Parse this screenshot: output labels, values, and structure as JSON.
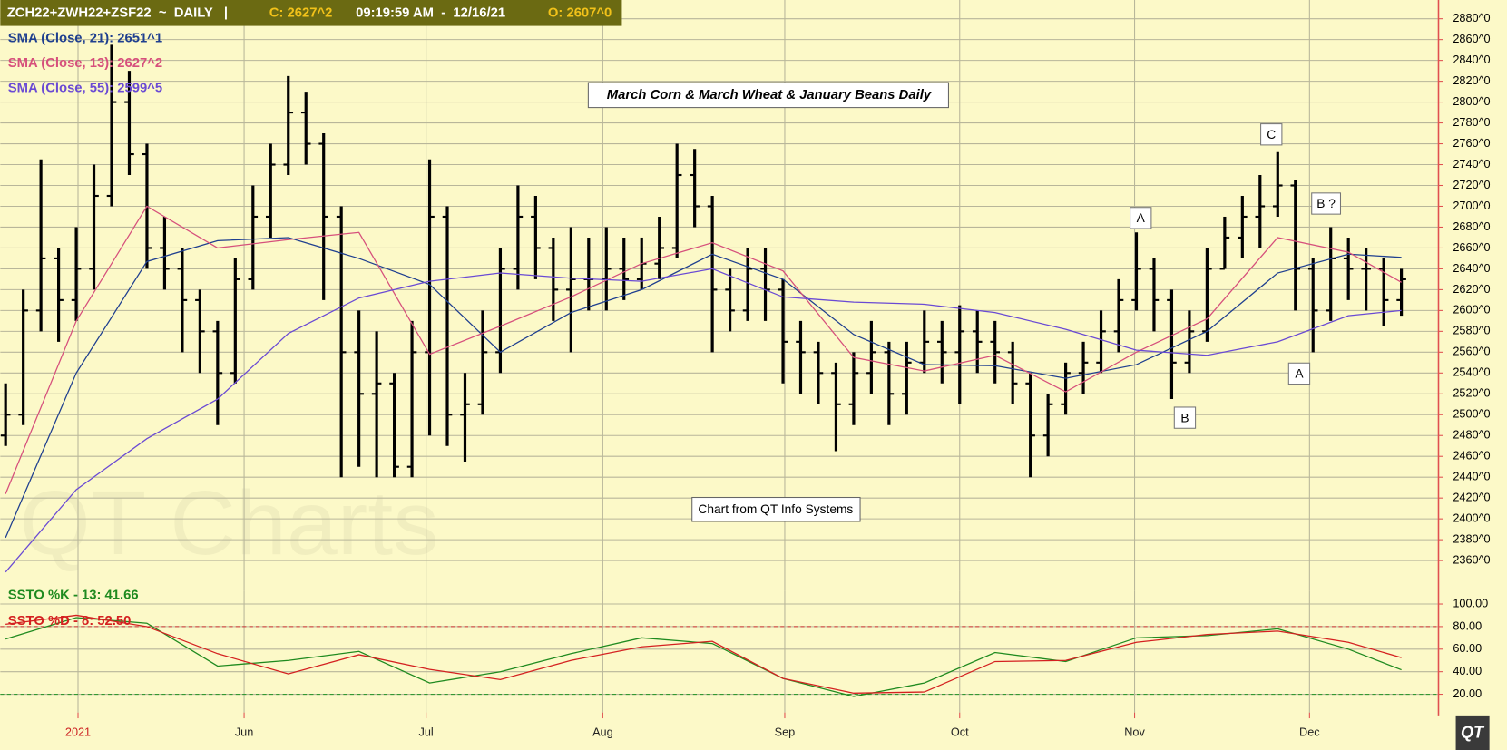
{
  "header": {
    "symbol": "ZCH22+ZWH22+ZSF22  ~  DAILY   |",
    "close": "C: 2627^2",
    "time": "09:19:59 AM  -  12/16/21",
    "open": "O: 2607^0"
  },
  "logo": "QT",
  "chart_data": [
    {
      "type": "ohlc",
      "title": "March Corn & March Wheat & January Beans Daily",
      "source": "Chart from QT Info Systems",
      "watermark": "QT Charts",
      "bar_color": "#000000",
      "open": [
        2480,
        2500,
        2600,
        2650,
        2610,
        2640,
        2710,
        2800,
        2750,
        2660,
        2640,
        2610,
        2580,
        2540,
        2630,
        2690,
        2740,
        2790,
        2760,
        2690,
        2560,
        2520,
        2530,
        2450,
        2560,
        2690,
        2500,
        2510,
        2560,
        2640,
        2690,
        2660,
        2620,
        2630,
        2630,
        2640,
        2630,
        2645,
        2660,
        2730,
        2700,
        2620,
        2600,
        2640,
        2620,
        2570,
        2560,
        2540,
        2510,
        2540,
        2560,
        2520,
        2550,
        2570,
        2560,
        2580,
        2570,
        2560,
        2530,
        2480,
        2510,
        2540,
        2550,
        2580,
        2610,
        2640,
        2610,
        2550,
        2580,
        2640,
        2670,
        2690,
        2700,
        2720,
        2640,
        2600,
        2650,
        2640,
        2640,
        2610
      ],
      "high": [
        2530,
        2620,
        2745,
        2660,
        2680,
        2740,
        2855,
        2830,
        2760,
        2690,
        2660,
        2620,
        2590,
        2650,
        2720,
        2760,
        2825,
        2810,
        2770,
        2700,
        2600,
        2580,
        2540,
        2590,
        2745,
        2700,
        2540,
        2600,
        2660,
        2720,
        2710,
        2670,
        2680,
        2670,
        2680,
        2670,
        2670,
        2690,
        2760,
        2755,
        2710,
        2640,
        2660,
        2660,
        2630,
        2590,
        2570,
        2550,
        2560,
        2590,
        2570,
        2570,
        2600,
        2590,
        2605,
        2600,
        2590,
        2570,
        2540,
        2520,
        2550,
        2570,
        2600,
        2630,
        2675,
        2650,
        2620,
        2600,
        2660,
        2690,
        2710,
        2730,
        2752,
        2725,
        2650,
        2680,
        2670,
        2660,
        2650,
        2640
      ],
      "low": [
        2470,
        2490,
        2580,
        2570,
        2590,
        2620,
        2700,
        2730,
        2640,
        2620,
        2560,
        2540,
        2490,
        2530,
        2620,
        2670,
        2730,
        2740,
        2610,
        2440,
        2450,
        2440,
        2440,
        2440,
        2480,
        2470,
        2455,
        2500,
        2540,
        2620,
        2630,
        2590,
        2560,
        2600,
        2600,
        2610,
        2620,
        2630,
        2650,
        2680,
        2560,
        2580,
        2590,
        2590,
        2530,
        2520,
        2510,
        2465,
        2490,
        2520,
        2490,
        2500,
        2540,
        2530,
        2510,
        2540,
        2530,
        2510,
        2440,
        2460,
        2500,
        2520,
        2540,
        2560,
        2600,
        2580,
        2515,
        2540,
        2570,
        2640,
        2650,
        2660,
        2690,
        2600,
        2560,
        2590,
        2610,
        2600,
        2585,
        2595
      ],
      "close": [
        2500,
        2600,
        2650,
        2610,
        2640,
        2710,
        2800,
        2750,
        2660,
        2640,
        2610,
        2580,
        2540,
        2630,
        2690,
        2740,
        2790,
        2760,
        2690,
        2560,
        2520,
        2530,
        2450,
        2560,
        2690,
        2500,
        2510,
        2560,
        2640,
        2690,
        2660,
        2620,
        2630,
        2630,
        2640,
        2630,
        2645,
        2660,
        2730,
        2700,
        2620,
        2600,
        2640,
        2620,
        2570,
        2560,
        2540,
        2510,
        2540,
        2560,
        2520,
        2550,
        2570,
        2560,
        2580,
        2570,
        2560,
        2530,
        2480,
        2510,
        2540,
        2550,
        2580,
        2610,
        2640,
        2610,
        2550,
        2580,
        2640,
        2670,
        2690,
        2700,
        2720,
        2640,
        2600,
        2650,
        2640,
        2640,
        2610,
        2630
      ],
      "series": [
        {
          "name": "SMA (Close, 21): 2651^1",
          "color": "#1f3f8f",
          "x": [
            0,
            4,
            8,
            12,
            16,
            20,
            24,
            28,
            32,
            36,
            40,
            44,
            48,
            52,
            56,
            60,
            64,
            68,
            72,
            76,
            79
          ],
          "values": [
            2382,
            2540,
            2647,
            2667,
            2670,
            2650,
            2625,
            2560,
            2598,
            2620,
            2654,
            2630,
            2577,
            2548,
            2547,
            2535,
            2548,
            2580,
            2636,
            2654,
            2651
          ]
        },
        {
          "name": "SMA (Close, 13): 2627^2",
          "color": "#d6507c",
          "x": [
            0,
            4,
            8,
            12,
            16,
            20,
            24,
            28,
            32,
            36,
            40,
            44,
            48,
            52,
            56,
            60,
            64,
            68,
            72,
            76,
            79
          ],
          "values": [
            2424,
            2590,
            2700,
            2660,
            2668,
            2675,
            2558,
            2585,
            2613,
            2645,
            2665,
            2638,
            2555,
            2542,
            2557,
            2522,
            2560,
            2592,
            2670,
            2656,
            2627
          ]
        },
        {
          "name": "SMA (Close, 55): 2599^5",
          "color": "#6a4ad4",
          "x": [
            0,
            4,
            8,
            12,
            16,
            20,
            24,
            28,
            32,
            36,
            40,
            44,
            48,
            52,
            56,
            60,
            64,
            68,
            72,
            76,
            79
          ],
          "values": [
            2349,
            2428,
            2477,
            2515,
            2578,
            2612,
            2628,
            2636,
            2631,
            2628,
            2640,
            2613,
            2608,
            2606,
            2598,
            2582,
            2562,
            2557,
            2570,
            2595,
            2600
          ]
        }
      ],
      "annotations": [
        "A",
        "C",
        "B ?",
        "B",
        "A"
      ],
      "xlim": [
        -0.3,
        81.1
      ],
      "xticks": [
        {
          "value": 4.1,
          "label": "2021"
        },
        {
          "value": 13.5,
          "label": "Jun"
        },
        {
          "value": 23.8,
          "label": "Jul"
        },
        {
          "value": 33.8,
          "label": "Aug"
        },
        {
          "value": 44.1,
          "label": "Sep"
        },
        {
          "value": 54,
          "label": "Oct"
        },
        {
          "value": 63.9,
          "label": "Nov"
        },
        {
          "value": 73.8,
          "label": "Dec"
        }
      ],
      "ylim": [
        2345,
        2898
      ],
      "yticks": [
        {
          "value": 2360,
          "label": "2360^0"
        },
        {
          "value": 2380,
          "label": "2380^0"
        },
        {
          "value": 2400,
          "label": "2400^0"
        },
        {
          "value": 2420,
          "label": "2420^0"
        },
        {
          "value": 2440,
          "label": "2440^0"
        },
        {
          "value": 2460,
          "label": "2460^0"
        },
        {
          "value": 2480,
          "label": "2480^0"
        },
        {
          "value": 2500,
          "label": "2500^0"
        },
        {
          "value": 2520,
          "label": "2520^0"
        },
        {
          "value": 2540,
          "label": "2540^0"
        },
        {
          "value": 2560,
          "label": "2560^0"
        },
        {
          "value": 2580,
          "label": "2580^0"
        },
        {
          "value": 2600,
          "label": "2600^0"
        },
        {
          "value": 2620,
          "label": "2620^0"
        },
        {
          "value": 2640,
          "label": "2640^0"
        },
        {
          "value": 2660,
          "label": "2660^0"
        },
        {
          "value": 2680,
          "label": "2680^0"
        },
        {
          "value": 2700,
          "label": "2700^0"
        },
        {
          "value": 2720,
          "label": "2720^0"
        },
        {
          "value": 2740,
          "label": "2740^0"
        },
        {
          "value": 2760,
          "label": "2760^0"
        },
        {
          "value": 2780,
          "label": "2780^0"
        },
        {
          "value": 2800,
          "label": "2800^0"
        },
        {
          "value": 2820,
          "label": "2820^0"
        },
        {
          "value": 2840,
          "label": "2840^0"
        },
        {
          "value": 2860,
          "label": "2860^0"
        },
        {
          "value": 2880,
          "label": "2880^0"
        }
      ],
      "grid": true
    },
    {
      "type": "line",
      "series": [
        {
          "name": "SSTO %K - 13: 41.66",
          "color": "#1f8a1f",
          "x": [
            0,
            4,
            8,
            12,
            16,
            20,
            24,
            28,
            32,
            36,
            40,
            44,
            48,
            52,
            56,
            60,
            64,
            68,
            72,
            76,
            79
          ],
          "values": [
            69,
            88,
            83,
            45,
            50,
            58,
            30,
            40,
            56,
            70,
            65,
            34,
            18,
            30,
            57,
            49,
            70,
            72,
            78,
            60,
            41.66
          ]
        },
        {
          "name": "SSTO %D - 8: 52.50",
          "color": "#d42020",
          "x": [
            0,
            4,
            8,
            12,
            16,
            20,
            24,
            28,
            32,
            36,
            40,
            44,
            48,
            52,
            56,
            60,
            64,
            68,
            72,
            76,
            79
          ],
          "values": [
            82,
            90,
            80,
            56,
            38,
            55,
            42,
            33,
            50,
            62,
            67,
            34,
            21,
            22,
            49,
            50,
            66,
            73,
            76,
            66,
            52.5
          ]
        }
      ],
      "reference_lines": [
        {
          "value": 80,
          "color": "#cc3333"
        },
        {
          "value": 20,
          "color": "#339933"
        }
      ],
      "xlim": [
        -0.3,
        81.1
      ],
      "ylim": [
        3.8,
        111.9
      ],
      "yticks": [
        {
          "value": 20,
          "label": "20.00"
        },
        {
          "value": 40,
          "label": "40.00"
        },
        {
          "value": 60,
          "label": "60.00"
        },
        {
          "value": 80,
          "label": "80.00"
        },
        {
          "value": 100,
          "label": "100.00"
        }
      ],
      "grid": true
    }
  ]
}
